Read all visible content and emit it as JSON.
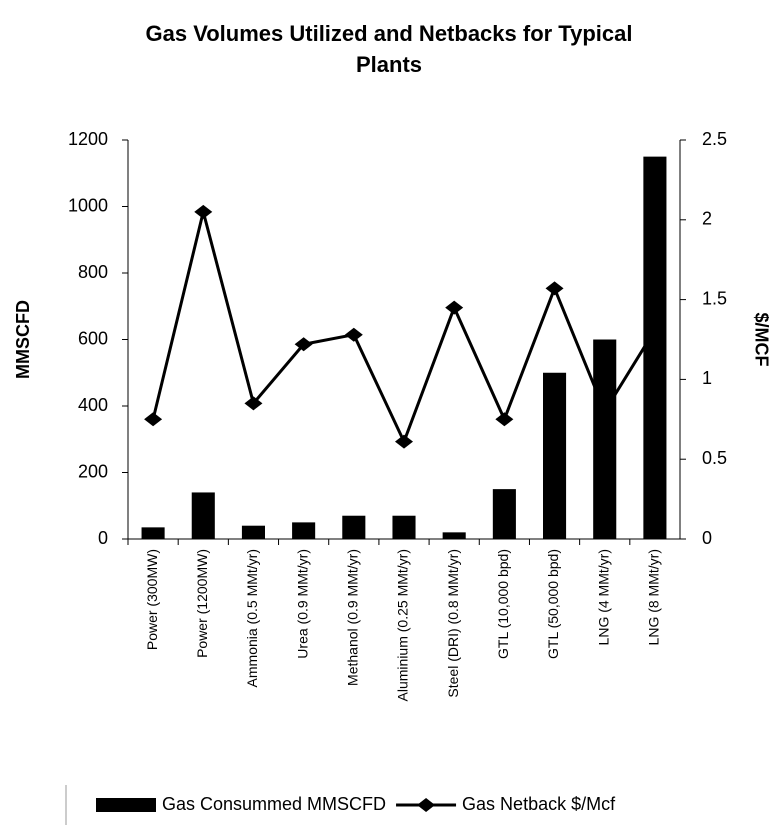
{
  "chart_data": {
    "type": "bar_line",
    "title": "Gas Volumes Utilized and Netbacks for Typical Plants",
    "y_label": "MMSCFD",
    "y2_label": "$/MCF",
    "categories": [
      "Power (300MW)",
      "Power (1200MW)",
      "Ammonia (0.5 MMt/yr)",
      "Urea (0.9 MMt/yr)",
      "Methanol (0.9 MMt/yr)",
      "Aluminium (0.25 MMt/yr)",
      "Steel (DRI) (0.8 MMt/yr)",
      "GTL (10,000 bpd)",
      "GTL (50,000 bpd)",
      "LNG (4 MMt/yr)",
      "LNG (8 MMt/yr)"
    ],
    "series": [
      {
        "name": "Gas Consummed MMSCFD",
        "color": "#000000",
        "kind": "bar",
        "values": [
          35,
          140,
          40,
          50,
          70,
          70,
          20,
          150,
          500,
          600,
          1150
        ]
      },
      {
        "name": "Gas Netback $/Mcf",
        "color": "#000000",
        "kind": "line",
        "axis": "y2",
        "values": [
          0.75,
          2.05,
          0.85,
          1.22,
          1.28,
          0.61,
          1.45,
          0.75,
          1.57,
          0.8,
          1.31
        ]
      }
    ],
    "ylim": [
      0,
      1200
    ],
    "yticks": [
      0,
      200,
      400,
      600,
      800,
      1000,
      1200
    ],
    "y2lim": [
      0,
      2.5
    ],
    "y2ticks": [
      0,
      0.5,
      1,
      1.5,
      2,
      2.5
    ],
    "grid": false,
    "legend": "bottom"
  }
}
